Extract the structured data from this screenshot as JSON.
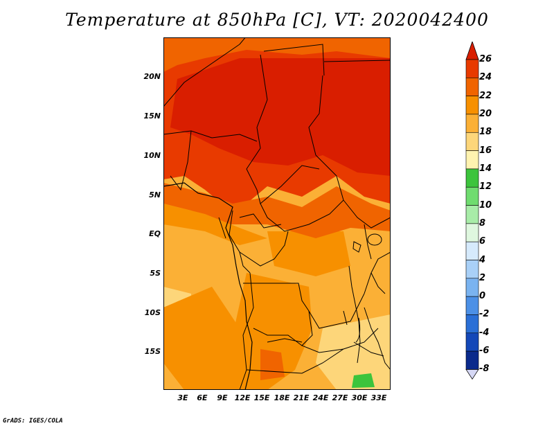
{
  "title": "Temperature at 850hPa [C], VT: 2020042400",
  "credit": "GrADS: IGES/COLA",
  "lat_ticks": [
    "20N",
    "15N",
    "10N",
    "5N",
    "EQ",
    "5S",
    "10S",
    "15S"
  ],
  "lon_ticks": [
    "3E",
    "6E",
    "9E",
    "12E",
    "15E",
    "18E",
    "21E",
    "24E",
    "27E",
    "30E",
    "33E"
  ],
  "colorbar": {
    "labels": [
      "26",
      "24",
      "22",
      "20",
      "18",
      "16",
      "14",
      "12",
      "10",
      "8",
      "6",
      "4",
      "2",
      "0",
      "-2",
      "-4",
      "-6",
      "-8"
    ],
    "colors": [
      "#d91e00",
      "#e83a00",
      "#f06400",
      "#f79000",
      "#fbb036",
      "#fdd67a",
      "#fff3b0",
      "#3cc43c",
      "#6fdc6f",
      "#a8eca8",
      "#dff7df",
      "#d6eafc",
      "#a9d0f7",
      "#7ab3f0",
      "#4c90e6",
      "#2a6fd6",
      "#1448b8",
      "#0a2a8c",
      "#06125a"
    ]
  },
  "map": {
    "region": "Central Africa",
    "lon_range": [
      0,
      34
    ],
    "lat_range": [
      -20,
      25
    ]
  }
}
